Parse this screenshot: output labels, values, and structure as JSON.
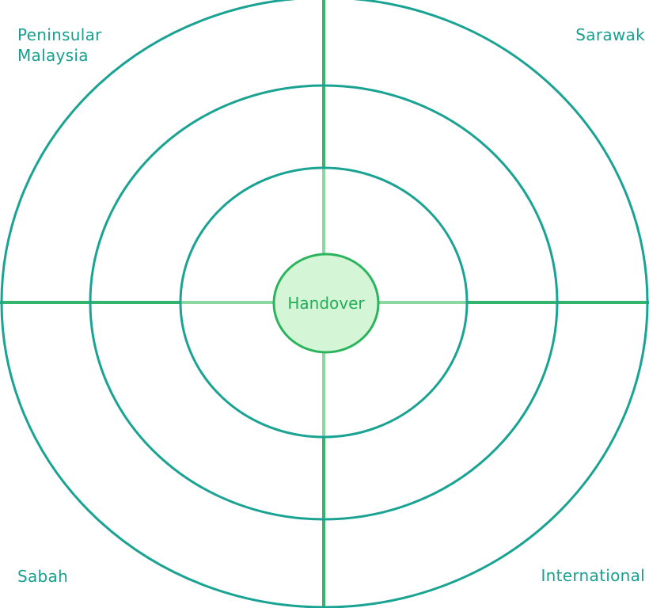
{
  "center": {
    "label": "Handover"
  },
  "quadrants": {
    "top_left": "Peninsular\nMalaysia",
    "top_right": "Sarawak",
    "bottom_left": "Sabah",
    "bottom_right": "International"
  },
  "colors": {
    "ring": "#1aa392",
    "axis_outer": "#33b56e",
    "axis_inner": "#8cd8a3",
    "center_fill": "#d4f5d6",
    "center_stroke": "#2ab45c",
    "center_text": "#22ad58",
    "label_text": "#17a08d"
  }
}
